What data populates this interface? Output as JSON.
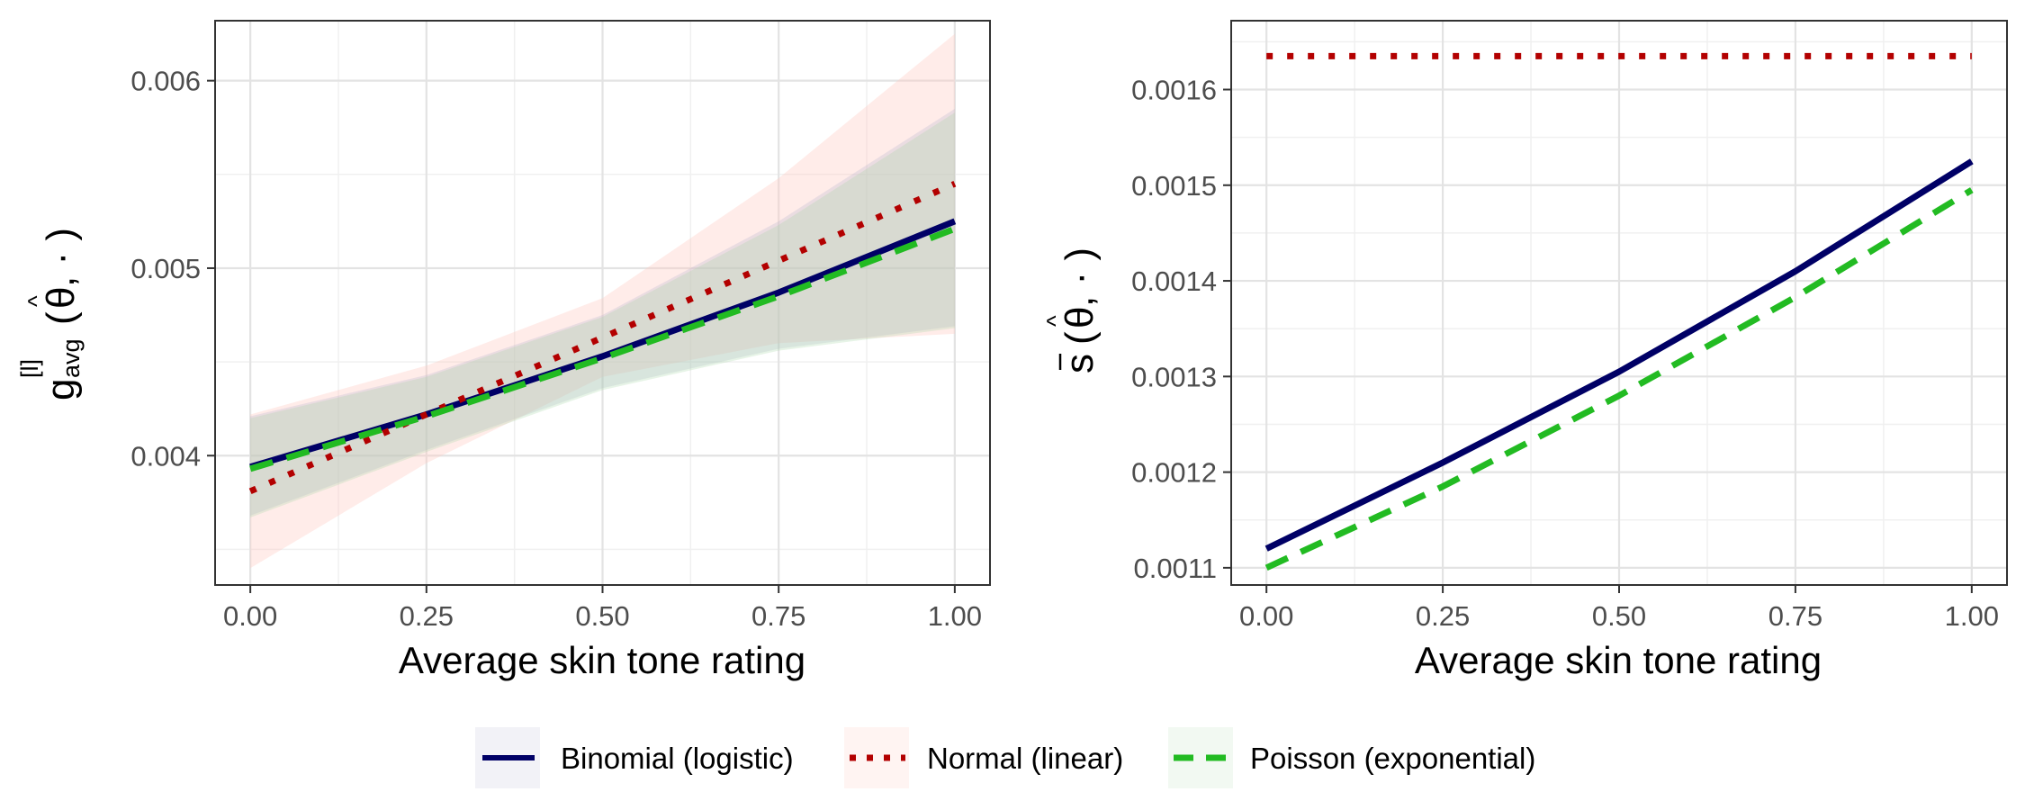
{
  "chart_data": [
    {
      "type": "line",
      "panel": "left",
      "xlabel": "Average skin tone rating",
      "ylabel_parts": {
        "base": "g",
        "sup": "[l]",
        "sub": "avg",
        "theta": "θ",
        "hat": "^",
        "tail": "( , · )"
      },
      "xlim": [
        -0.05,
        1.05
      ],
      "ylim": [
        0.00331,
        0.00632
      ],
      "x_ticks": [
        0,
        0.25,
        0.5,
        0.75,
        1
      ],
      "x_tick_labels": [
        "0.00",
        "0.25",
        "0.50",
        "0.75",
        "1.00"
      ],
      "y_ticks": [
        0.004,
        0.005,
        0.006
      ],
      "y_tick_labels": [
        "0.004",
        "0.005",
        "0.006"
      ],
      "x": [
        0,
        0.25,
        0.5,
        0.75,
        1
      ],
      "series": [
        {
          "name": "Binomial (logistic)",
          "values": [
            0.00394,
            0.00422,
            0.00453,
            0.00487,
            0.00525
          ],
          "ribbon_lower": [
            0.00368,
            0.00403,
            0.00436,
            0.00457,
            0.00469
          ],
          "ribbon_upper": [
            0.00421,
            0.00443,
            0.00475,
            0.00525,
            0.00585
          ]
        },
        {
          "name": "Normal (linear)",
          "values": [
            0.00381,
            0.00422,
            0.00463,
            0.00504,
            0.00545
          ],
          "ribbon_lower": [
            0.0034,
            0.00396,
            0.00442,
            0.0046,
            0.00465
          ],
          "ribbon_upper": [
            0.00422,
            0.00448,
            0.00484,
            0.00548,
            0.00625
          ]
        },
        {
          "name": "Poisson (exponential)",
          "values": [
            0.00393,
            0.00421,
            0.00452,
            0.00485,
            0.00521
          ],
          "ribbon_lower": [
            0.00367,
            0.00402,
            0.00435,
            0.00456,
            0.00468
          ],
          "ribbon_upper": [
            0.0042,
            0.00442,
            0.00474,
            0.00523,
            0.00583
          ]
        }
      ]
    },
    {
      "type": "line",
      "panel": "right",
      "xlabel": "Average skin tone rating",
      "ylabel_parts": {
        "base": "s",
        "theta": "θ",
        "hat": "^",
        "tail": "( , · )"
      },
      "xlim": [
        -0.05,
        1.05
      ],
      "ylim": [
        0.001082,
        0.001672
      ],
      "x_ticks": [
        0,
        0.25,
        0.5,
        0.75,
        1
      ],
      "x_tick_labels": [
        "0.00",
        "0.25",
        "0.50",
        "0.75",
        "1.00"
      ],
      "y_ticks": [
        0.0011,
        0.0012,
        0.0013,
        0.0014,
        0.0015,
        0.0016
      ],
      "y_tick_labels": [
        "0.0011",
        "0.0012",
        "0.0013",
        "0.0014",
        "0.0015",
        "0.0016"
      ],
      "x": [
        0,
        0.25,
        0.5,
        0.75,
        1
      ],
      "series": [
        {
          "name": "Binomial (logistic)",
          "values": [
            0.00112,
            0.00121,
            0.001305,
            0.00141,
            0.001525
          ]
        },
        {
          "name": "Normal (linear)",
          "values": [
            0.001635,
            0.001635,
            0.001635,
            0.001635,
            0.001635
          ]
        },
        {
          "name": "Poisson (exponential)",
          "values": [
            0.0011,
            0.001185,
            0.00128,
            0.001383,
            0.001495
          ]
        }
      ]
    }
  ],
  "legend": {
    "placement": "bottom",
    "items": [
      {
        "label": "Binomial (logistic)",
        "color": "#000066",
        "style": "solid"
      },
      {
        "label": "Normal (linear)",
        "color": "#b30000",
        "style": "dotted"
      },
      {
        "label": "Poisson (exponential)",
        "color": "#22bb22",
        "style": "dashed"
      }
    ]
  },
  "colors": {
    "binomial": "#000066",
    "normal": "#b30000",
    "poisson": "#22bb22",
    "binomial_ribbon": "#b3b3cc",
    "normal_ribbon": "#ffc8c0",
    "poisson_ribbon": "#aad9aa"
  }
}
